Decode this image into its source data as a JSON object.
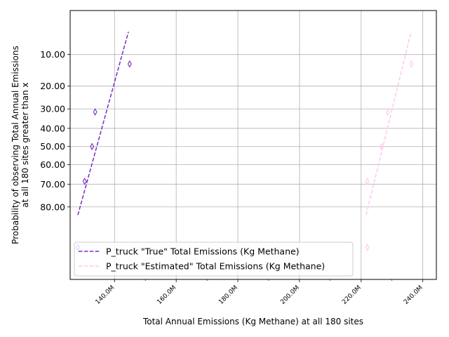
{
  "chart_data": {
    "type": "scatter",
    "title": "",
    "xlabel": "Total Annual Emissions (Kg Methane) at all 180 sites",
    "ylabel": "Probability of observing Total Annual Emissions\nat all 180 sites greater than x",
    "xlim": [
      125.6,
      244.4
    ],
    "x_scale": "linear",
    "y_scale": "probit",
    "y_inverted": true,
    "ylim_percent": [
      2.9,
      96.8
    ],
    "grid": true,
    "legend_position": "lower-left",
    "x_ticks": [
      140,
      160,
      180,
      200,
      220,
      240
    ],
    "x_tick_labels": [
      "140.0M",
      "160.0M",
      "180.0M",
      "200.0M",
      "220.0M",
      "240.0M"
    ],
    "y_ticks": [
      10,
      20,
      30,
      40,
      50,
      60,
      70,
      80
    ],
    "y_tick_labels": [
      "10.00",
      "20.00",
      "30.00",
      "40.00",
      "50.00",
      "60.00",
      "70.00",
      "80.00"
    ],
    "series": [
      {
        "name": "P_truck \"True\" Total Emissions (Kg Methane)",
        "color": "#7b2cbf",
        "line_style": "dashed",
        "marker": "thin_diamond",
        "points": [
          {
            "x": 128.1,
            "y": 92.0
          },
          {
            "x": 130.3,
            "y": 68.6
          },
          {
            "x": 132.7,
            "y": 50.0
          },
          {
            "x": 133.7,
            "y": 31.5
          },
          {
            "x": 144.9,
            "y": 12.5
          }
        ],
        "fit_line": [
          {
            "x": 128.1,
            "y": 83.0
          },
          {
            "x": 144.5,
            "y": 5.5
          }
        ]
      },
      {
        "name": "P_truck \"Estimated\" Total Emissions (Kg Methane)",
        "color": "#ffc8f0",
        "line_style": "dashed",
        "marker": "thin_diamond",
        "points": [
          {
            "x": 222.0,
            "y": 92.0
          },
          {
            "x": 222.0,
            "y": 68.6
          },
          {
            "x": 226.6,
            "y": 50.0
          },
          {
            "x": 228.6,
            "y": 31.5
          },
          {
            "x": 236.3,
            "y": 12.5
          }
        ],
        "fit_line": [
          {
            "x": 221.6,
            "y": 83.0
          },
          {
            "x": 236.2,
            "y": 5.5
          }
        ]
      }
    ]
  }
}
